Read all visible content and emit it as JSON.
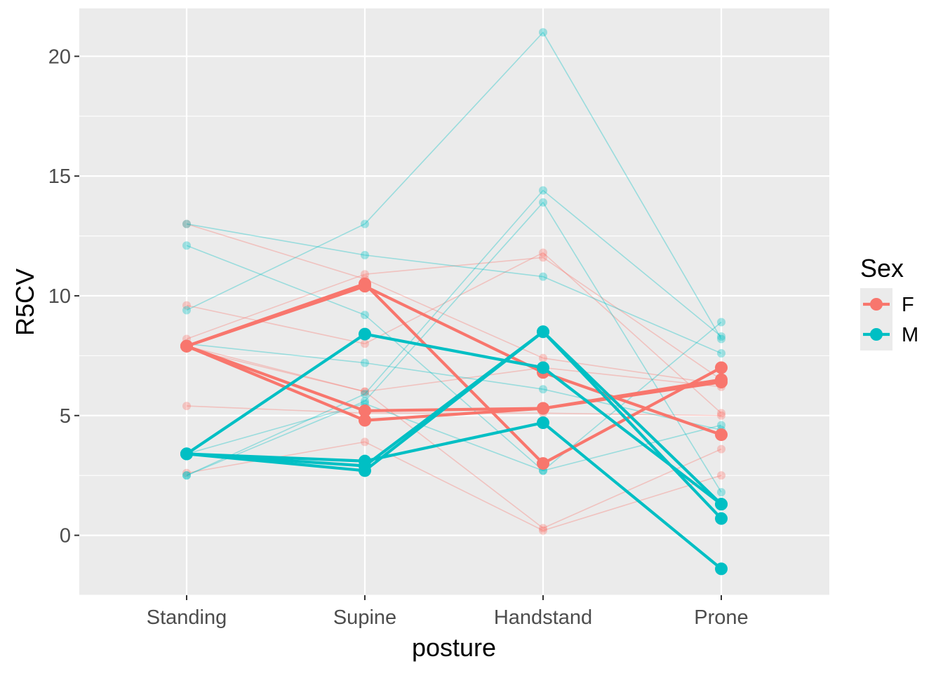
{
  "chart_data": {
    "type": "line",
    "xlabel": "posture",
    "ylabel": "R5CV",
    "categories": [
      "Standing",
      "Supine",
      "Handstand",
      "Prone"
    ],
    "ylim": [
      -2.5,
      22
    ],
    "yticks": [
      0,
      5,
      10,
      15,
      20
    ],
    "grid": true,
    "legend": {
      "title": "Sex",
      "position": "right",
      "entries": [
        {
          "label": "F",
          "color": "#F8766D"
        },
        {
          "label": "M",
          "color": "#00BFC4"
        }
      ]
    },
    "colors": {
      "F": "#F8766D",
      "M": "#00BFC4"
    },
    "series": [
      {
        "sex": "F",
        "highlight": false,
        "values": [
          13.0,
          10.7,
          7.4,
          6.3
        ]
      },
      {
        "sex": "F",
        "highlight": false,
        "values": [
          9.6,
          8.0,
          11.8,
          5.1
        ]
      },
      {
        "sex": "F",
        "highlight": false,
        "values": [
          8.2,
          10.9,
          11.6,
          6.5
        ]
      },
      {
        "sex": "F",
        "highlight": false,
        "values": [
          7.8,
          6.0,
          0.3,
          3.6
        ]
      },
      {
        "sex": "F",
        "highlight": false,
        "values": [
          5.4,
          5.1,
          5.1,
          5.0
        ]
      },
      {
        "sex": "F",
        "highlight": false,
        "values": [
          2.6,
          3.9,
          0.2,
          2.5
        ]
      },
      {
        "sex": "F",
        "highlight": false,
        "values": [
          7.9,
          6.0,
          7.0,
          6.2
        ]
      },
      {
        "sex": "M",
        "highlight": false,
        "values": [
          13.0,
          11.7,
          10.8,
          7.6
        ]
      },
      {
        "sex": "M",
        "highlight": false,
        "values": [
          9.4,
          13.0,
          21.0,
          8.2
        ]
      },
      {
        "sex": "M",
        "highlight": false,
        "values": [
          12.1,
          9.2,
          2.7,
          4.6
        ]
      },
      {
        "sex": "M",
        "highlight": false,
        "values": [
          2.5,
          5.9,
          14.4,
          8.3
        ]
      },
      {
        "sex": "M",
        "highlight": false,
        "values": [
          2.5,
          5.6,
          13.9,
          1.8
        ]
      },
      {
        "sex": "M",
        "highlight": false,
        "values": [
          8.0,
          7.2,
          6.1,
          4.4
        ]
      },
      {
        "sex": "M",
        "highlight": false,
        "values": [
          3.4,
          5.5,
          2.7,
          8.9
        ]
      },
      {
        "sex": "F",
        "highlight": true,
        "values": [
          7.9,
          10.5,
          3.0,
          7.0
        ]
      },
      {
        "sex": "F",
        "highlight": true,
        "values": [
          7.9,
          4.8,
          5.3,
          6.5
        ]
      },
      {
        "sex": "F",
        "highlight": true,
        "values": [
          7.9,
          5.2,
          5.3,
          6.4
        ]
      },
      {
        "sex": "F",
        "highlight": true,
        "values": [
          7.9,
          10.4,
          6.8,
          4.2
        ]
      },
      {
        "sex": "M",
        "highlight": true,
        "values": [
          3.4,
          8.4,
          7.0,
          1.3
        ]
      },
      {
        "sex": "M",
        "highlight": true,
        "values": [
          3.4,
          2.7,
          8.5,
          0.7
        ]
      },
      {
        "sex": "M",
        "highlight": true,
        "values": [
          3.4,
          3.1,
          4.7,
          -1.4
        ]
      },
      {
        "sex": "M",
        "highlight": true,
        "values": [
          3.4,
          2.9,
          8.5,
          1.3
        ]
      }
    ]
  }
}
